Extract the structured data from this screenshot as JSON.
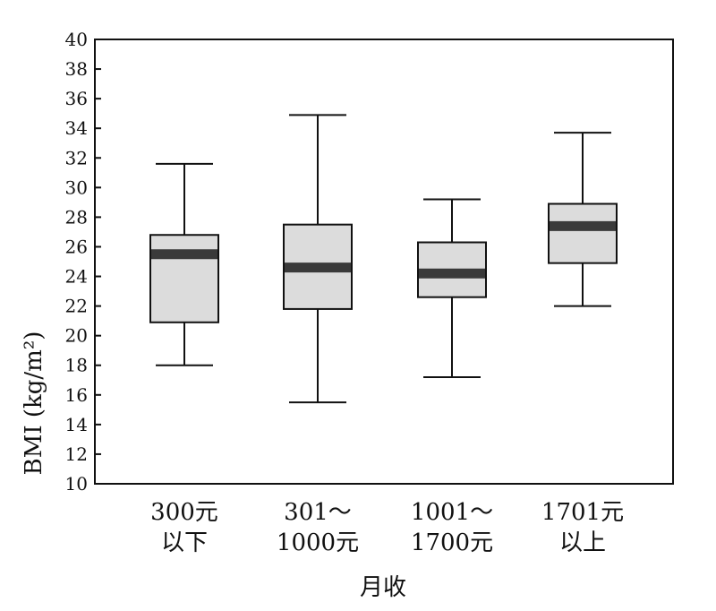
{
  "chart_data": {
    "type": "boxplot",
    "title": "",
    "xlabel": "月收",
    "ylabel": "BMI (kg/m²)",
    "ylim": [
      10,
      40
    ],
    "y_ticks": [
      10,
      12,
      14,
      16,
      18,
      20,
      22,
      24,
      26,
      28,
      30,
      32,
      34,
      36,
      38,
      40
    ],
    "grid": false,
    "categories": [
      {
        "line1": "300元",
        "line2": "以下"
      },
      {
        "line1": "301～",
        "line2": "1000元"
      },
      {
        "line1": "1001～",
        "line2": "1700元"
      },
      {
        "line1": "1701元",
        "line2": "以上"
      }
    ],
    "boxes": [
      {
        "min": 18.0,
        "q1": 20.9,
        "median": 25.5,
        "q3": 26.8,
        "max": 31.6
      },
      {
        "min": 15.5,
        "q1": 21.8,
        "median": 24.6,
        "q3": 27.5,
        "max": 34.9
      },
      {
        "min": 17.2,
        "q1": 22.6,
        "median": 24.2,
        "q3": 26.3,
        "max": 29.2
      },
      {
        "min": 22.0,
        "q1": 24.9,
        "median": 27.4,
        "q3": 28.9,
        "max": 33.7
      }
    ],
    "colors": {
      "box_fill": "#dcdcdc",
      "median": "#3a3a3a",
      "line": "#111111"
    }
  }
}
